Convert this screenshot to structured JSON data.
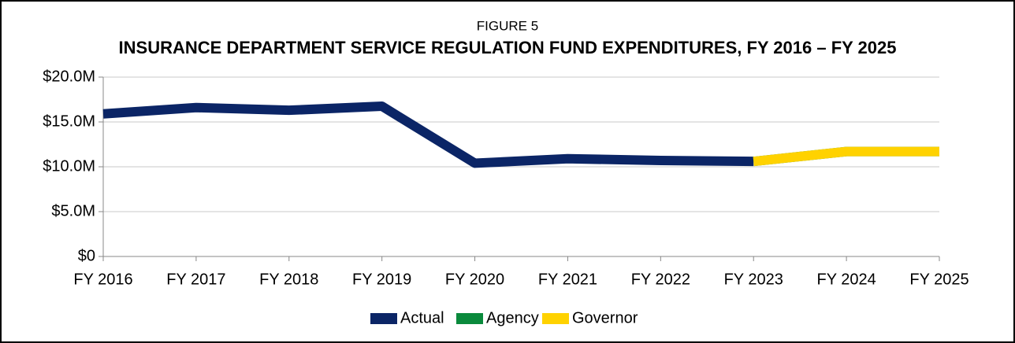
{
  "chart_data": {
    "type": "line",
    "figure_label": "FIGURE 5",
    "title": "INSURANCE DEPARTMENT SERVICE REGULATION FUND EXPENDITURES, FY 2016 – FY 2025",
    "categories": [
      "FY 2016",
      "FY 2017",
      "FY 2018",
      "FY 2019",
      "FY 2020",
      "FY 2021",
      "FY 2022",
      "FY 2023",
      "FY 2024",
      "FY 2025"
    ],
    "series": [
      {
        "name": "Actual",
        "color": "#0b2566",
        "values": [
          15.9,
          16.6,
          16.3,
          16.75,
          10.4,
          10.9,
          10.7,
          10.6,
          null,
          null
        ]
      },
      {
        "name": "Agency",
        "color": "#0a8a3c",
        "values": [
          null,
          null,
          null,
          null,
          null,
          null,
          null,
          10.6,
          11.7,
          11.7
        ]
      },
      {
        "name": "Governor",
        "color": "#ffd200",
        "values": [
          null,
          null,
          null,
          null,
          null,
          null,
          null,
          10.6,
          11.7,
          11.7
        ]
      }
    ],
    "ylim": [
      0,
      20
    ],
    "yticks": [
      {
        "value": 0,
        "label": "$0"
      },
      {
        "value": 5,
        "label": "$5.0M"
      },
      {
        "value": 10,
        "label": "$10.0M"
      },
      {
        "value": 15,
        "label": "$15.0M"
      },
      {
        "value": 20,
        "label": "$20.0M"
      }
    ],
    "grid": true,
    "legend": "bottom"
  }
}
